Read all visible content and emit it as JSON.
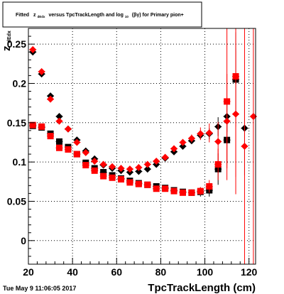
{
  "title_box": {
    "prefix": "Fitted",
    "z_symbol": "z",
    "z_sub": "dEdx",
    "versus": "versus TpcTrackLength and log",
    "log_sub": "10",
    "suffix": "(βγ) for Primary pion+"
  },
  "timestamp": "Tue May  9 11:06:05 2017",
  "colors": {
    "series_black": "#000000",
    "series_red": "#ff0000",
    "grid": "#000000",
    "frame": "#000000"
  },
  "chart_data": {
    "type": "scatter",
    "title": "Fitted z_dEdx versus TpcTrackLength and log10(βγ) for Primary pion+",
    "xlabel": "TpcTrackLength (cm)",
    "ylabel": "z_dEdx",
    "xlim": [
      20,
      123
    ],
    "ylim": [
      -0.03,
      0.27
    ],
    "xticks": [
      20,
      40,
      60,
      80,
      100,
      120
    ],
    "yticks": [
      0,
      0.05,
      0.1,
      0.15,
      0.2,
      0.25
    ],
    "ytick_labels": [
      "0",
      "0.05",
      "0.1",
      "0.15",
      "0.2",
      "0.25"
    ],
    "grid": true,
    "series": [
      {
        "marker": "diamond",
        "color": "#000000",
        "points": [
          {
            "x": 22,
            "y": 0.24,
            "err": 0.002
          },
          {
            "x": 26,
            "y": 0.212,
            "err": 0.002
          },
          {
            "x": 30,
            "y": 0.184,
            "err": 0.002
          },
          {
            "x": 34,
            "y": 0.158,
            "err": 0.002
          },
          {
            "x": 38,
            "y": 0.142,
            "err": 0.002
          },
          {
            "x": 42,
            "y": 0.128,
            "err": 0.002
          },
          {
            "x": 46,
            "y": 0.114,
            "err": 0.002
          },
          {
            "x": 50,
            "y": 0.104,
            "err": 0.002
          },
          {
            "x": 54,
            "y": 0.096,
            "err": 0.002
          },
          {
            "x": 58,
            "y": 0.092,
            "err": 0.002
          },
          {
            "x": 62,
            "y": 0.089,
            "err": 0.002
          },
          {
            "x": 66,
            "y": 0.087,
            "err": 0.002
          },
          {
            "x": 70,
            "y": 0.088,
            "err": 0.002
          },
          {
            "x": 74,
            "y": 0.091,
            "err": 0.002
          },
          {
            "x": 78,
            "y": 0.097,
            "err": 0.002
          },
          {
            "x": 82,
            "y": 0.105,
            "err": 0.002
          },
          {
            "x": 86,
            "y": 0.113,
            "err": 0.002
          },
          {
            "x": 90,
            "y": 0.12,
            "err": 0.002
          },
          {
            "x": 94,
            "y": 0.127,
            "err": 0.003
          },
          {
            "x": 98,
            "y": 0.134,
            "err": 0.005
          },
          {
            "x": 102,
            "y": 0.136,
            "err": 0.007
          },
          {
            "x": 106,
            "y": 0.145,
            "err": 0.012
          },
          {
            "x": 110,
            "y": 0.158,
            "err": 0.02
          },
          {
            "x": 114,
            "y": 0.205,
            "err": 0.04
          },
          {
            "x": 118,
            "y": 0.143,
            "err": 0.06
          }
        ]
      },
      {
        "marker": "square",
        "color": "#000000",
        "points": [
          {
            "x": 22,
            "y": 0.146,
            "err": 0.002
          },
          {
            "x": 26,
            "y": 0.144,
            "err": 0.002
          },
          {
            "x": 30,
            "y": 0.136,
            "err": 0.002
          },
          {
            "x": 34,
            "y": 0.126,
            "err": 0.002
          },
          {
            "x": 38,
            "y": 0.119,
            "err": 0.002
          },
          {
            "x": 42,
            "y": 0.11,
            "err": 0.002
          },
          {
            "x": 46,
            "y": 0.099,
            "err": 0.002
          },
          {
            "x": 50,
            "y": 0.092,
            "err": 0.002
          },
          {
            "x": 54,
            "y": 0.087,
            "err": 0.002
          },
          {
            "x": 58,
            "y": 0.083,
            "err": 0.002
          },
          {
            "x": 62,
            "y": 0.079,
            "err": 0.002
          },
          {
            "x": 66,
            "y": 0.076,
            "err": 0.002
          },
          {
            "x": 70,
            "y": 0.073,
            "err": 0.002
          },
          {
            "x": 74,
            "y": 0.071,
            "err": 0.002
          },
          {
            "x": 78,
            "y": 0.069,
            "err": 0.002
          },
          {
            "x": 82,
            "y": 0.067,
            "err": 0.002
          },
          {
            "x": 86,
            "y": 0.064,
            "err": 0.002
          },
          {
            "x": 90,
            "y": 0.062,
            "err": 0.003
          },
          {
            "x": 94,
            "y": 0.061,
            "err": 0.004
          },
          {
            "x": 98,
            "y": 0.062,
            "err": 0.006
          },
          {
            "x": 102,
            "y": 0.064,
            "err": 0.008
          },
          {
            "x": 106,
            "y": 0.091,
            "err": 0.02
          },
          {
            "x": 110,
            "y": 0.128,
            "err": 0.03
          },
          {
            "x": 114,
            "y": 0.205,
            "err": 0.06
          }
        ]
      },
      {
        "marker": "diamond",
        "color": "#ff0000",
        "points": [
          {
            "x": 22,
            "y": 0.243,
            "err": 0.002
          },
          {
            "x": 26,
            "y": 0.215,
            "err": 0.002
          },
          {
            "x": 30,
            "y": 0.18,
            "err": 0.002
          },
          {
            "x": 34,
            "y": 0.152,
            "err": 0.002
          },
          {
            "x": 38,
            "y": 0.142,
            "err": 0.002
          },
          {
            "x": 42,
            "y": 0.125,
            "err": 0.002
          },
          {
            "x": 46,
            "y": 0.112,
            "err": 0.002
          },
          {
            "x": 50,
            "y": 0.101,
            "err": 0.002
          },
          {
            "x": 54,
            "y": 0.097,
            "err": 0.002
          },
          {
            "x": 58,
            "y": 0.094,
            "err": 0.002
          },
          {
            "x": 62,
            "y": 0.092,
            "err": 0.002
          },
          {
            "x": 66,
            "y": 0.091,
            "err": 0.002
          },
          {
            "x": 70,
            "y": 0.093,
            "err": 0.002
          },
          {
            "x": 74,
            "y": 0.097,
            "err": 0.002
          },
          {
            "x": 78,
            "y": 0.101,
            "err": 0.002
          },
          {
            "x": 82,
            "y": 0.106,
            "err": 0.002
          },
          {
            "x": 86,
            "y": 0.117,
            "err": 0.003
          },
          {
            "x": 90,
            "y": 0.125,
            "err": 0.004
          },
          {
            "x": 94,
            "y": 0.13,
            "err": 0.005
          },
          {
            "x": 98,
            "y": 0.136,
            "err": 0.008
          },
          {
            "x": 102,
            "y": 0.137,
            "err": 0.012
          },
          {
            "x": 106,
            "y": 0.126,
            "err": 0.025
          },
          {
            "x": 110,
            "y": 0.152,
            "err": 0.06
          },
          {
            "x": 114,
            "y": 0.161,
            "err": 0.08
          },
          {
            "x": 118,
            "y": 0.12,
            "err": 0.15
          },
          {
            "x": 122,
            "y": 0.158,
            "err": 0.2
          }
        ]
      },
      {
        "marker": "square",
        "color": "#ff0000",
        "points": [
          {
            "x": 22,
            "y": 0.147,
            "err": 0.002
          },
          {
            "x": 26,
            "y": 0.145,
            "err": 0.002
          },
          {
            "x": 30,
            "y": 0.133,
            "err": 0.002
          },
          {
            "x": 34,
            "y": 0.118,
            "err": 0.002
          },
          {
            "x": 38,
            "y": 0.116,
            "err": 0.002
          },
          {
            "x": 42,
            "y": 0.11,
            "err": 0.002
          },
          {
            "x": 46,
            "y": 0.096,
            "err": 0.002
          },
          {
            "x": 50,
            "y": 0.089,
            "err": 0.002
          },
          {
            "x": 54,
            "y": 0.082,
            "err": 0.002
          },
          {
            "x": 58,
            "y": 0.08,
            "err": 0.002
          },
          {
            "x": 62,
            "y": 0.078,
            "err": 0.002
          },
          {
            "x": 66,
            "y": 0.074,
            "err": 0.002
          },
          {
            "x": 70,
            "y": 0.072,
            "err": 0.002
          },
          {
            "x": 74,
            "y": 0.071,
            "err": 0.002
          },
          {
            "x": 78,
            "y": 0.066,
            "err": 0.002
          },
          {
            "x": 82,
            "y": 0.066,
            "err": 0.002
          },
          {
            "x": 86,
            "y": 0.063,
            "err": 0.003
          },
          {
            "x": 90,
            "y": 0.061,
            "err": 0.003
          },
          {
            "x": 94,
            "y": 0.061,
            "err": 0.004
          },
          {
            "x": 98,
            "y": 0.063,
            "err": 0.005
          },
          {
            "x": 102,
            "y": 0.069,
            "err": 0.008
          },
          {
            "x": 106,
            "y": 0.097,
            "err": 0.02
          },
          {
            "x": 110,
            "y": 0.177,
            "err": 0.1
          },
          {
            "x": 114,
            "y": 0.209,
            "err": 0.15
          }
        ]
      }
    ]
  }
}
